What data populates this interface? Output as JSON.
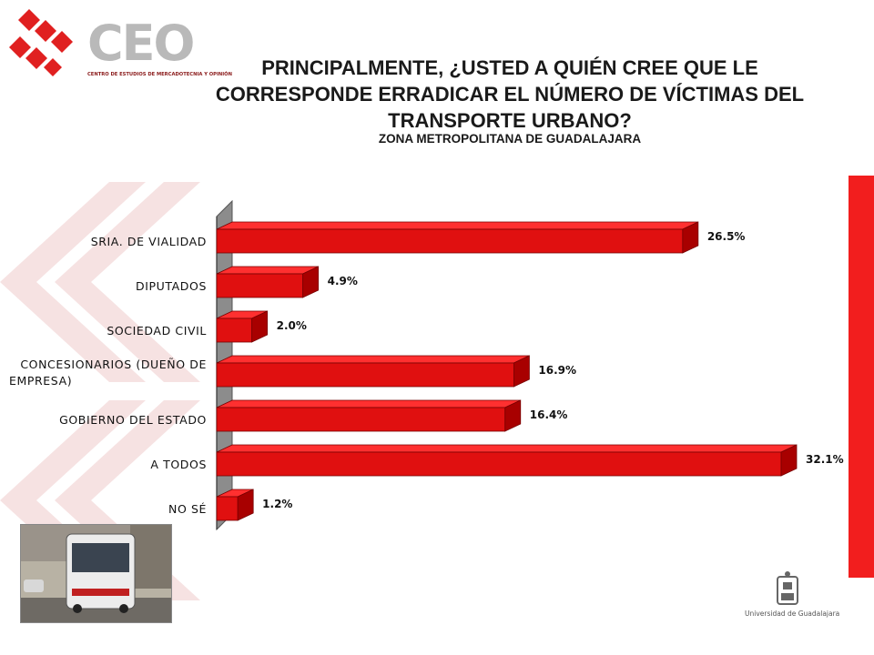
{
  "logo": {
    "name": "CEO",
    "subtitle": "CENTRO DE ESTUDIOS DE MERCADOTECNIA Y OPINIÓN"
  },
  "header": {
    "title": "PRINCIPALMENTE, ¿USTED A QUIÉN CREE QUE LE CORRESPONDE ERRADICAR EL NÚMERO DE VÍCTIMAS DEL TRANSPORTE URBANO?",
    "subtitle": "ZONA METROPOLITANA DE GUADALAJARA"
  },
  "footer": {
    "university": "Universidad de Guadalajara"
  },
  "colors": {
    "bar": "#e01010",
    "bar_dark": "#a80000",
    "bar_top": "#ff3030",
    "stripe": "#f21e1e"
  },
  "chart_data": {
    "type": "bar",
    "orientation": "horizontal",
    "categories": [
      "SRIA. DE VIALIDAD",
      "DIPUTADOS",
      "SOCIEDAD CIVIL",
      "CONCESIONARIOS (DUEÑO DE EMPRESA)",
      "GOBIERNO DEL ESTADO",
      "A TODOS",
      "NO SÉ"
    ],
    "values": [
      26.5,
      4.9,
      2.0,
      16.9,
      16.4,
      32.1,
      1.2
    ],
    "value_labels": [
      "26.5%",
      "4.9%",
      "2.0%",
      "16.9%",
      "16.4%",
      "32.1%",
      "1.2%"
    ],
    "xlim": [
      0,
      32.1
    ],
    "grid": false,
    "legend": "none"
  }
}
